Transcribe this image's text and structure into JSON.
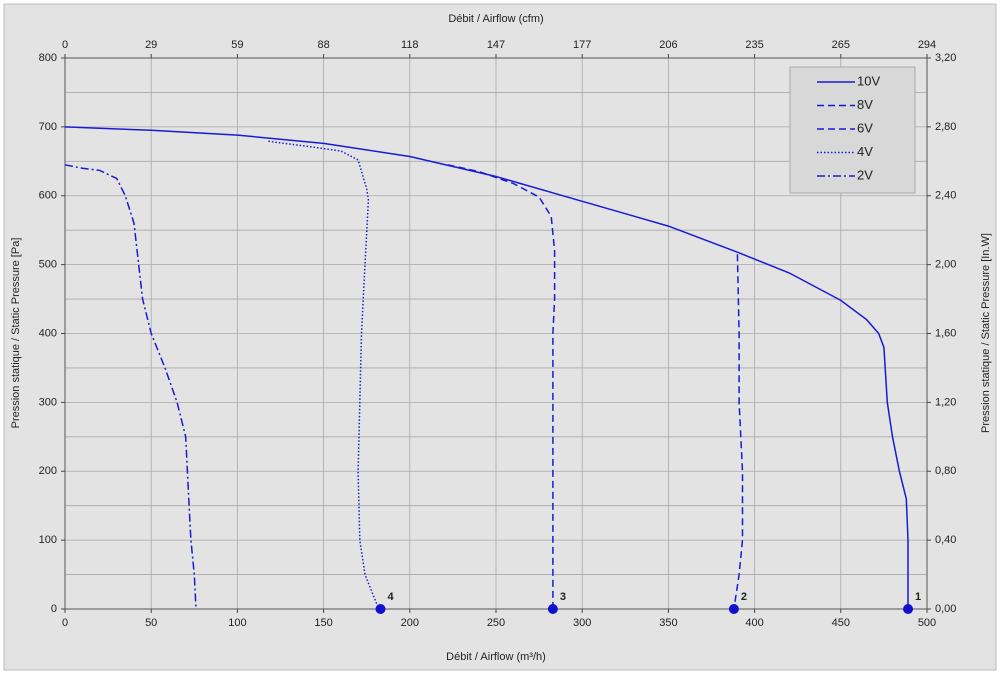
{
  "chart_data": {
    "type": "line",
    "x_label": "Débit / Airflow (m³/h)",
    "x2_label": "Débit / Airflow (cfm)",
    "y_label": "Pression statique / Static Pressure [Pa]",
    "y2_label": "Pression statique / Static Pressure [In.W]",
    "xlim": [
      0,
      500
    ],
    "xticks": [
      0,
      50,
      100,
      150,
      200,
      250,
      300,
      350,
      400,
      450,
      500
    ],
    "x2lim": [
      0,
      294.3
    ],
    "x2ticks": [
      0,
      {
        "value": 29.43,
        "label": "29"
      },
      {
        "value": 58.86,
        "label": "59"
      },
      {
        "value": 88.29,
        "label": "88"
      },
      {
        "value": 117.72,
        "label": "118"
      },
      {
        "value": 147.15,
        "label": "147"
      },
      {
        "value": 176.58,
        "label": "177"
      },
      {
        "value": 206.01,
        "label": "206"
      },
      {
        "value": 235.44,
        "label": "235"
      },
      {
        "value": 264.87,
        "label": "265"
      },
      {
        "value": 294.3,
        "label": "294"
      }
    ],
    "ylim": [
      0,
      800
    ],
    "yticks": [
      0,
      100,
      200,
      300,
      400,
      500,
      600,
      700,
      800
    ],
    "y_minor_grid": [
      50,
      150,
      250,
      350,
      450,
      550,
      650,
      750
    ],
    "y2lim": [
      0,
      3.2
    ],
    "y2ticks": [
      {
        "value": 0,
        "label": "0,00"
      },
      {
        "value": 0.4,
        "label": "0,40"
      },
      {
        "value": 0.8,
        "label": "0,80"
      },
      {
        "value": 1.2,
        "label": "1,20"
      },
      {
        "value": 1.6,
        "label": "1,60"
      },
      {
        "value": 2.0,
        "label": "2,00"
      },
      {
        "value": 2.4,
        "label": "2,40"
      },
      {
        "value": 2.8,
        "label": "2,80"
      },
      {
        "value": 3.2,
        "label": "3,20"
      }
    ],
    "grid": true,
    "legend": "top-right",
    "series": [
      {
        "name": "10V",
        "color": "#1a1ad6",
        "dash": "solid",
        "x": [
          0,
          50,
          100,
          150,
          200,
          250,
          300,
          350,
          390,
          420,
          450,
          465,
          472,
          475,
          476,
          477,
          480,
          484,
          488,
          489,
          489,
          489
        ],
        "values": [
          700,
          695,
          688,
          676,
          657,
          628,
          592,
          556,
          518,
          488,
          448,
          420,
          400,
          380,
          340,
          300,
          250,
          200,
          160,
          100,
          50,
          0
        ]
      },
      {
        "name": "8V",
        "color": "#1a1ad6",
        "dash": "dashed",
        "x": [
          390,
          391,
          391,
          392,
          393,
          393,
          391,
          388
        ],
        "values": [
          515,
          400,
          300,
          250,
          200,
          100,
          50,
          0
        ]
      },
      {
        "name": "6V",
        "color": "#1a1ad6",
        "dash": "dashed",
        "x": [
          222,
          240,
          260,
          275,
          282,
          284,
          284,
          283,
          283,
          283
        ],
        "values": [
          645,
          635,
          618,
          598,
          570,
          520,
          450,
          400,
          200,
          0
        ]
      },
      {
        "name": "4V",
        "color": "#1a1ad6",
        "dash": "dotted",
        "x": [
          118,
          140,
          160,
          170,
          175,
          176,
          174,
          172,
          171,
          170,
          171,
          174,
          182
        ],
        "values": [
          679,
          672,
          665,
          652,
          610,
          594,
          500,
          400,
          300,
          200,
          100,
          50,
          0
        ]
      },
      {
        "name": "2V",
        "color": "#1a1ad6",
        "dash": "dashdot",
        "x": [
          0,
          10,
          20,
          30,
          35,
          40,
          45,
          50,
          58,
          65,
          70,
          71,
          72,
          73,
          75,
          76
        ],
        "values": [
          645,
          640,
          637,
          625,
          600,
          560,
          450,
          400,
          350,
          300,
          250,
          200,
          150,
          100,
          50,
          0
        ]
      }
    ],
    "points": {
      "color": "#1010d0",
      "x": [
        489,
        388,
        283,
        183
      ],
      "y": [
        0,
        0,
        0,
        0
      ],
      "labels": [
        "1",
        "2",
        "3",
        "4"
      ]
    }
  }
}
